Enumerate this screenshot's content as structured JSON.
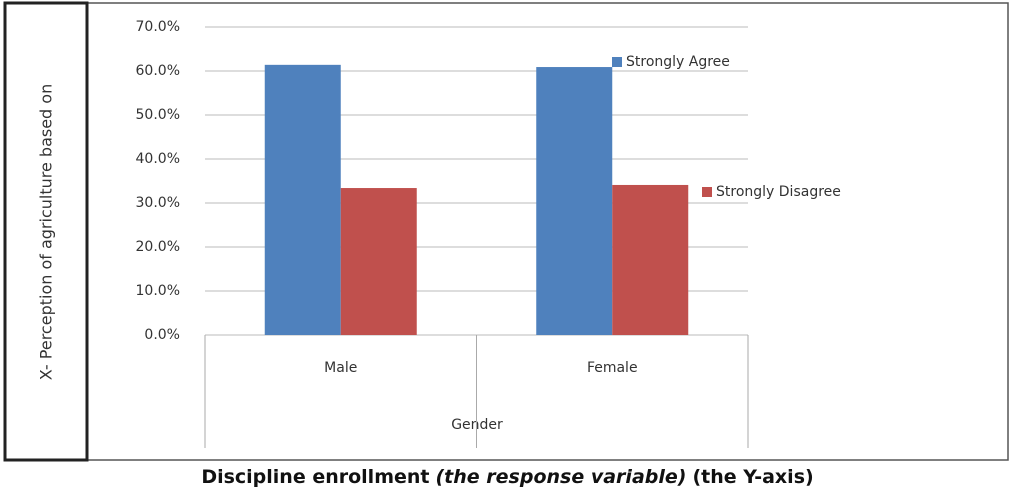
{
  "chart_data": {
    "type": "bar",
    "y_label": "X- Perception of agriculture based on",
    "x_label": "Gender",
    "caption": [
      "Discipline enrollment",
      "(the response variable)",
      "(the Y-axis)"
    ],
    "categories": [
      "Male",
      "Female"
    ],
    "series": [
      {
        "name": "Strongly Agree",
        "color": "#4f81bd",
        "values": [
          61.4,
          60.9
        ]
      },
      {
        "name": "Strongly Disagree",
        "color": "#c0504d",
        "values": [
          33.4,
          34.1
        ]
      }
    ],
    "ylim": [
      0,
      70
    ],
    "yticks": [
      {
        "value": 0,
        "label": "0.0%"
      },
      {
        "value": 10,
        "label": "10.0%"
      },
      {
        "value": 20,
        "label": "20.0%"
      },
      {
        "value": 30,
        "label": "30.0%"
      },
      {
        "value": 40,
        "label": "40.0%"
      },
      {
        "value": 50,
        "label": "50.0%"
      },
      {
        "value": 60,
        "label": "60.0%"
      },
      {
        "value": 70,
        "label": "70.0%"
      }
    ],
    "grid": true,
    "legend": "right"
  }
}
